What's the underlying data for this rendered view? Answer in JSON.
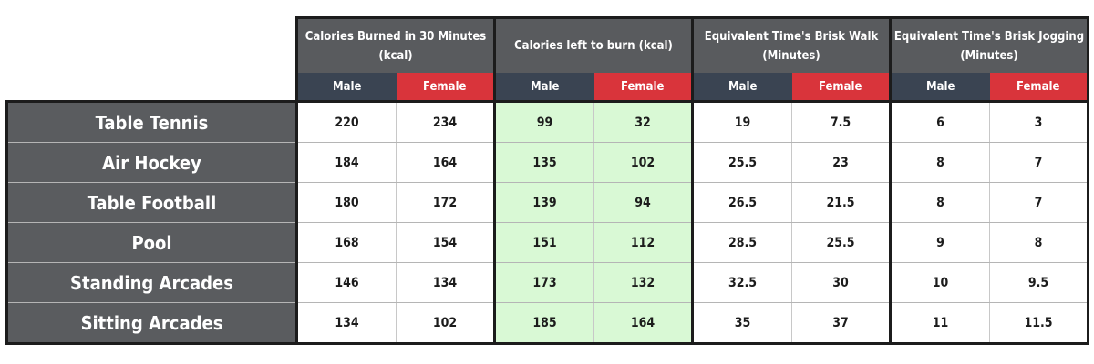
{
  "chart_data": {
    "type": "table",
    "column_groups": [
      {
        "label": "Calories Burned in 30 Minutes (kcal)",
        "highlight": false
      },
      {
        "label": "Calories left to burn (kcal)",
        "highlight": true
      },
      {
        "label": "Equivalent Time's Brisk Walk (Minutes)",
        "highlight": false
      },
      {
        "label": "Equivalent Time's Brisk Jogging (Minutes)",
        "highlight": false
      }
    ],
    "subcolumns": [
      "Male",
      "Female"
    ],
    "rows": [
      {
        "label": "Table Tennis",
        "values": [
          "220",
          "234",
          "99",
          "32",
          "19",
          "7.5",
          "6",
          "3"
        ]
      },
      {
        "label": "Air Hockey",
        "values": [
          "184",
          "164",
          "135",
          "102",
          "25.5",
          "23",
          "8",
          "7"
        ]
      },
      {
        "label": "Table Football",
        "values": [
          "180",
          "172",
          "139",
          "94",
          "26.5",
          "21.5",
          "8",
          "7"
        ]
      },
      {
        "label": "Pool",
        "values": [
          "168",
          "154",
          "151",
          "112",
          "28.5",
          "25.5",
          "9",
          "8"
        ]
      },
      {
        "label": "Standing Arcades",
        "values": [
          "146",
          "134",
          "173",
          "132",
          "32.5",
          "30",
          "10",
          "9.5"
        ]
      },
      {
        "label": "Sitting Arcades",
        "values": [
          "134",
          "102",
          "185",
          "164",
          "35",
          "37",
          "11",
          "11.5"
        ]
      }
    ]
  },
  "colors": {
    "label_bg": "#5a5c5f",
    "header_bg": "#595b5e",
    "male_bg": "#3a4452",
    "female_bg": "#d9343b",
    "highlight_bg": "#d9f9d5",
    "border": "#1c1c1c"
  }
}
